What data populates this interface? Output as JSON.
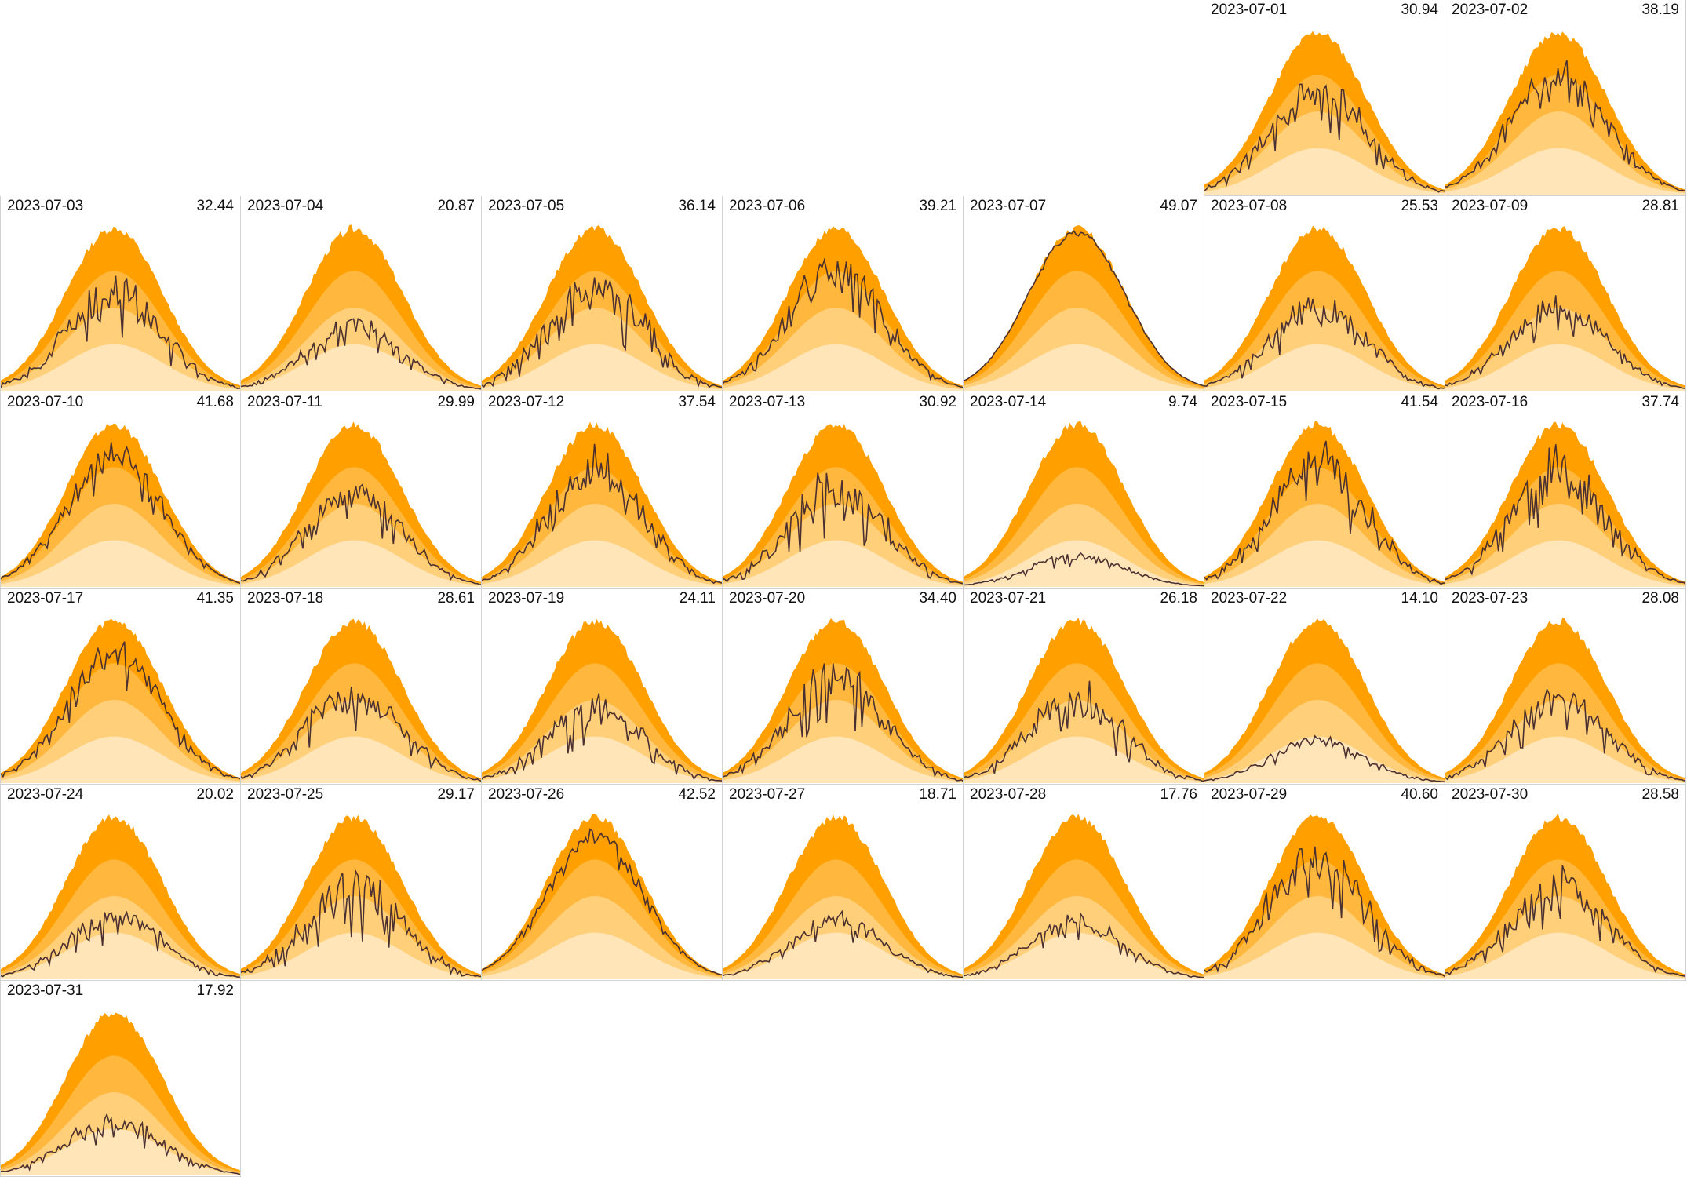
{
  "chart_data": {
    "type": "area",
    "layout": "calendar month grid, 7 columns, weeks starting Monday",
    "month": "2023-07",
    "band_colors": [
      "#ffe5b8",
      "#ffcf7a",
      "#ffb83d",
      "#ffa000"
    ],
    "actual_line_color": "#4a3030",
    "accent_color": "#e8452c",
    "grid_color": "#d2d2d2",
    "days": [
      {
        "date": "2023-07-01",
        "total": "30.94",
        "weekday": 5,
        "level": 0.76,
        "vol": 0.55,
        "seed": 11
      },
      {
        "date": "2023-07-02",
        "total": "38.19",
        "weekday": 6,
        "level": 0.86,
        "vol": 0.4,
        "seed": 12
      },
      {
        "date": "2023-07-03",
        "total": "32.44",
        "weekday": 0,
        "level": 0.72,
        "vol": 0.6,
        "seed": 13
      },
      {
        "date": "2023-07-04",
        "total": "20.87",
        "weekday": 1,
        "level": 0.45,
        "vol": 0.45,
        "seed": 14
      },
      {
        "date": "2023-07-05",
        "total": "36.14",
        "weekday": 2,
        "level": 0.82,
        "vol": 0.65,
        "seed": 15
      },
      {
        "date": "2023-07-06",
        "total": "39.21",
        "weekday": 3,
        "level": 0.86,
        "vol": 0.45,
        "seed": 16
      },
      {
        "date": "2023-07-07",
        "total": "49.07",
        "weekday": 4,
        "level": 0.98,
        "vol": 0.06,
        "seed": 17
      },
      {
        "date": "2023-07-08",
        "total": "25.53",
        "weekday": 5,
        "level": 0.64,
        "vol": 0.6,
        "seed": 18
      },
      {
        "date": "2023-07-09",
        "total": "28.81",
        "weekday": 6,
        "level": 0.62,
        "vol": 0.55,
        "seed": 19
      },
      {
        "date": "2023-07-10",
        "total": "41.68",
        "weekday": 0,
        "level": 0.9,
        "vol": 0.35,
        "seed": 20
      },
      {
        "date": "2023-07-11",
        "total": "29.99",
        "weekday": 1,
        "level": 0.66,
        "vol": 0.5,
        "seed": 21
      },
      {
        "date": "2023-07-12",
        "total": "37.54",
        "weekday": 2,
        "level": 0.86,
        "vol": 0.55,
        "seed": 22
      },
      {
        "date": "2023-07-13",
        "total": "30.92",
        "weekday": 3,
        "level": 0.76,
        "vol": 0.65,
        "seed": 23
      },
      {
        "date": "2023-07-14",
        "total": "9.74",
        "weekday": 4,
        "level": 0.22,
        "vol": 0.45,
        "seed": 24
      },
      {
        "date": "2023-07-15",
        "total": "41.54",
        "weekday": 5,
        "level": 0.94,
        "vol": 0.6,
        "seed": 25
      },
      {
        "date": "2023-07-16",
        "total": "37.74",
        "weekday": 6,
        "level": 0.86,
        "vol": 0.55,
        "seed": 26
      },
      {
        "date": "2023-07-17",
        "total": "41.35",
        "weekday": 0,
        "level": 0.9,
        "vol": 0.4,
        "seed": 27
      },
      {
        "date": "2023-07-18",
        "total": "28.61",
        "weekday": 1,
        "level": 0.66,
        "vol": 0.55,
        "seed": 28
      },
      {
        "date": "2023-07-19",
        "total": "24.11",
        "weekday": 2,
        "level": 0.58,
        "vol": 0.65,
        "seed": 29
      },
      {
        "date": "2023-07-20",
        "total": "34.40",
        "weekday": 3,
        "level": 0.8,
        "vol": 0.6,
        "seed": 30
      },
      {
        "date": "2023-07-21",
        "total": "26.18",
        "weekday": 4,
        "level": 0.64,
        "vol": 0.65,
        "seed": 31
      },
      {
        "date": "2023-07-22",
        "total": "14.10",
        "weekday": 5,
        "level": 0.3,
        "vol": 0.45,
        "seed": 32
      },
      {
        "date": "2023-07-23",
        "total": "28.08",
        "weekday": 6,
        "level": 0.62,
        "vol": 0.55,
        "seed": 33
      },
      {
        "date": "2023-07-24",
        "total": "20.02",
        "weekday": 0,
        "level": 0.46,
        "vol": 0.55,
        "seed": 34
      },
      {
        "date": "2023-07-25",
        "total": "29.17",
        "weekday": 1,
        "level": 0.72,
        "vol": 0.7,
        "seed": 35
      },
      {
        "date": "2023-07-26",
        "total": "42.52",
        "weekday": 2,
        "level": 0.92,
        "vol": 0.2,
        "seed": 36
      },
      {
        "date": "2023-07-27",
        "total": "18.71",
        "weekday": 3,
        "level": 0.42,
        "vol": 0.45,
        "seed": 37
      },
      {
        "date": "2023-07-28",
        "total": "17.76",
        "weekday": 4,
        "level": 0.4,
        "vol": 0.45,
        "seed": 38
      },
      {
        "date": "2023-07-29",
        "total": "40.60",
        "weekday": 5,
        "level": 0.92,
        "vol": 0.6,
        "seed": 39
      },
      {
        "date": "2023-07-30",
        "total": "28.58",
        "weekday": 6,
        "level": 0.7,
        "vol": 0.55,
        "seed": 40
      },
      {
        "date": "2023-07-31",
        "total": "17.92",
        "weekday": 0,
        "level": 0.4,
        "vol": 0.6,
        "seed": 41
      }
    ]
  }
}
